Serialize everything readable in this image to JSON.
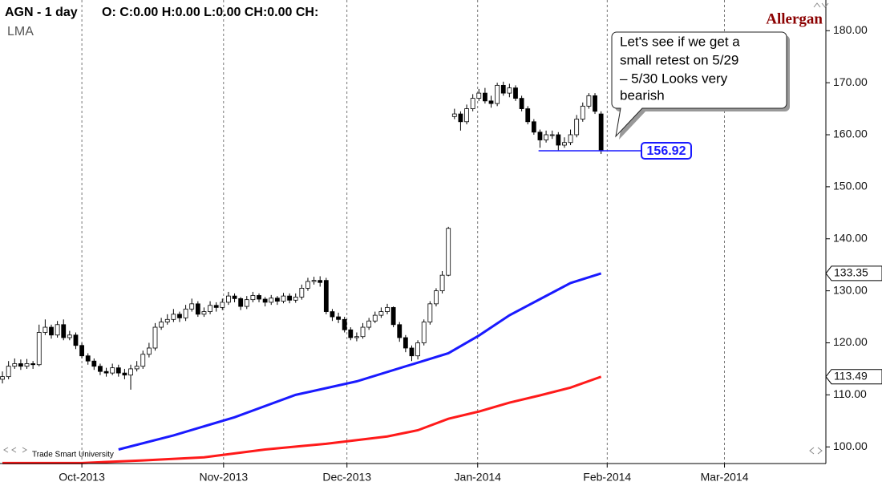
{
  "chart_data": {
    "type": "candlestick",
    "title": "AGN - 1 day",
    "ohlc_header": "O: C:0.00 H:0.00 L:0.00 CH:0.00 CH:",
    "subtitle": "LMA",
    "brand": "Allergan",
    "footnote": "Trade Smart University",
    "annotation": [
      "Let's see if we get a",
      "small retest on 5/29",
      "– 5/30 Looks very",
      "bearish"
    ],
    "x": [
      -13,
      -12,
      -11,
      -10,
      -9,
      -8,
      -7,
      -6,
      -5,
      -4,
      -3,
      -2,
      -1,
      0,
      1,
      2,
      3,
      4,
      5,
      6,
      7,
      8,
      9,
      10,
      11,
      12,
      13,
      14,
      15,
      16,
      17,
      18,
      19,
      20,
      21,
      22,
      23,
      24,
      25,
      26,
      27,
      28,
      29,
      30,
      31,
      32,
      33,
      34,
      35,
      36,
      37,
      38,
      39,
      40,
      41,
      42,
      43,
      44,
      45,
      46,
      47,
      48,
      49,
      50,
      51,
      52,
      53,
      54,
      55,
      56,
      57,
      58,
      59,
      60,
      61,
      62,
      63,
      64,
      65,
      66,
      67,
      68,
      69,
      70,
      71,
      72,
      73,
      74,
      75,
      76,
      77,
      78,
      79,
      80,
      81,
      82,
      83,
      84,
      85
    ],
    "open": [
      113,
      113.5,
      115.5,
      116,
      115.5,
      116,
      115.8,
      122,
      123,
      121.5,
      123.5,
      121,
      121.5,
      119.5,
      117.5,
      116.5,
      115.5,
      114.5,
      114.2,
      115.2,
      114.2,
      113.8,
      115,
      115.5,
      117.8,
      119,
      123,
      124,
      124.5,
      125.5,
      124.8,
      126.5,
      127.5,
      125.5,
      126,
      127.2,
      126.8,
      127.8,
      129,
      128.5,
      127,
      128.3,
      129.1,
      128.4,
      127.8,
      128.6,
      128,
      129,
      128.2,
      128.8,
      130.5,
      131.8,
      132,
      132,
      126,
      125,
      124.5,
      122.5,
      121,
      121.2,
      123,
      124.2,
      125.3,
      126,
      126.8,
      123.5,
      121,
      119,
      117.5,
      120,
      124,
      127.5,
      130,
      133,
      163.5,
      164,
      162.5,
      165,
      167,
      168,
      166.5,
      166,
      169.5,
      168,
      169,
      167,
      165,
      162.5,
      160.5,
      159,
      160,
      160,
      158,
      158.5,
      160,
      163,
      165.5,
      167.5,
      164
    ],
    "high": [
      114.5,
      116.5,
      117,
      116.8,
      116.9,
      116.5,
      123.5,
      124.5,
      123.5,
      124.2,
      124.5,
      122.3,
      122,
      120,
      118,
      117,
      116,
      115.2,
      116,
      115.8,
      115,
      115.8,
      116.5,
      118.5,
      120,
      123.8,
      124.8,
      125.5,
      126.5,
      126,
      127.3,
      128.5,
      128,
      126.8,
      128,
      127.8,
      128.5,
      129.8,
      129.5,
      128.8,
      129,
      129.8,
      129.5,
      128.8,
      129.2,
      129,
      129.6,
      129.5,
      129.5,
      131.2,
      132.5,
      132.7,
      132.8,
      132.5,
      126.5,
      125.8,
      125,
      123,
      122,
      123.8,
      124.8,
      126,
      126.8,
      127.5,
      127,
      124,
      121.5,
      119.5,
      120.5,
      124.5,
      128,
      130.5,
      133.8,
      142.3,
      165,
      164.5,
      165.8,
      167.8,
      168.8,
      169,
      167.5,
      170,
      170.2,
      169.8,
      169.5,
      167.5,
      165.5,
      163,
      161,
      160.8,
      160.8,
      160.5,
      159.5,
      161,
      163.8,
      166.2,
      168,
      168,
      164.5
    ],
    "low": [
      112.2,
      113,
      115,
      114.8,
      115,
      115,
      115.5,
      121.5,
      120.8,
      121,
      120.5,
      120.5,
      118.8,
      117,
      115.8,
      114.8,
      113.8,
      113.5,
      113.8,
      113.5,
      113,
      111,
      114.5,
      115,
      117.2,
      118.5,
      122.5,
      123.5,
      124,
      124,
      124.2,
      126,
      125,
      125,
      125.5,
      126,
      126.3,
      127.3,
      127.8,
      126.3,
      126.5,
      127.8,
      127.8,
      127,
      127.3,
      127.3,
      127.6,
      127.6,
      127.7,
      128.3,
      130,
      131.2,
      130.8,
      125.5,
      124.2,
      123.8,
      122,
      120.5,
      120.3,
      120.8,
      122.5,
      123.8,
      124.8,
      125.5,
      123,
      120.2,
      118.2,
      116.5,
      116.8,
      119.5,
      123.5,
      127,
      129.5,
      132.8,
      163,
      160.8,
      162,
      164.5,
      166.5,
      166,
      165.2,
      165.5,
      167.5,
      167.2,
      166.5,
      164.5,
      162,
      160,
      157.5,
      158.5,
      159.2,
      157,
      157.5,
      158,
      159.5,
      162.5,
      165,
      164,
      156.3
    ],
    "close": [
      113.5,
      115.5,
      116,
      115.5,
      116,
      115.8,
      122,
      123,
      121.5,
      123.5,
      121,
      121.5,
      119.5,
      117.5,
      116.5,
      115.5,
      114.5,
      114.2,
      115.2,
      114.2,
      113.8,
      115,
      115.5,
      117.8,
      119,
      123,
      124,
      124.5,
      125.5,
      124.8,
      126.5,
      127.5,
      125.5,
      126,
      127.2,
      126.8,
      127.8,
      129,
      128.5,
      127,
      128.3,
      129.1,
      128.4,
      127.8,
      128.6,
      128,
      129,
      128.2,
      128.8,
      130.5,
      131.8,
      132,
      131.6,
      126,
      125,
      124.5,
      122.5,
      121,
      121.2,
      123,
      124.2,
      125.3,
      126,
      126.8,
      123.5,
      121,
      119,
      117.5,
      120,
      124,
      127.5,
      130,
      133,
      142,
      164,
      162.5,
      165,
      167,
      168,
      166.5,
      166,
      169.5,
      168,
      169,
      167,
      165,
      162.5,
      160.5,
      159,
      160,
      160,
      158,
      158.5,
      160,
      163,
      165.5,
      167.5,
      164.5,
      156.92
    ],
    "series": [
      {
        "name": "LMA",
        "color": "#1a1aff",
        "x": [
          6,
          15,
          25,
          35,
          45,
          55,
          60,
          65,
          70,
          75,
          80,
          85
        ],
        "values": [
          99.5,
          102.2,
          105.7,
          110,
          112.6,
          116.2,
          118,
          121.4,
          125.3,
          128.4,
          131.5,
          133.35
        ]
      },
      {
        "name": "LMA",
        "color": "#ff1a1a",
        "x": [
          -13,
          0,
          10,
          20,
          30,
          40,
          50,
          55,
          60,
          65,
          70,
          75,
          80,
          85
        ],
        "values": [
          96.9,
          96.9,
          97.4,
          98,
          99.5,
          100.6,
          102,
          103.2,
          105.4,
          106.8,
          108.5,
          109.9,
          111.4,
          113.49
        ]
      }
    ],
    "xlim": [
      -13.4,
      121.8
    ],
    "xticks": [
      {
        "value": 0,
        "label": "Oct-2013"
      },
      {
        "value": 23.2,
        "label": "Nov-2013"
      },
      {
        "value": 43.4,
        "label": "Dec-2013"
      },
      {
        "value": 64.8,
        "label": "Jan-2014"
      },
      {
        "value": 86,
        "label": "Feb-2014"
      },
      {
        "value": 105.2,
        "label": "Mar-2014"
      }
    ],
    "ylim": [
      96.8,
      185.9
    ],
    "yticks": [
      {
        "value": 100,
        "label": "100.00"
      },
      {
        "value": 110,
        "label": "110.00"
      },
      {
        "value": 120,
        "label": "120.00"
      },
      {
        "value": 130,
        "label": "130.00"
      },
      {
        "value": 140,
        "label": "140.00"
      },
      {
        "value": 150,
        "label": "150.00"
      },
      {
        "value": 160,
        "label": "160.00"
      },
      {
        "value": 170,
        "label": "170.00"
      },
      {
        "value": 180,
        "label": "180.00"
      }
    ],
    "grid": true
  }
}
